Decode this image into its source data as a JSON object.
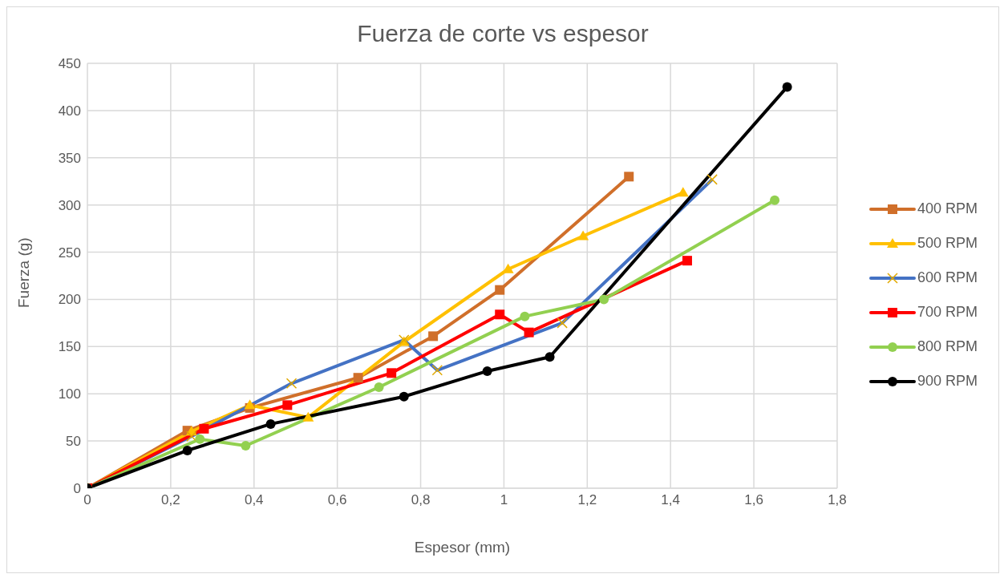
{
  "chart_data": {
    "type": "line",
    "title": "Fuerza de corte vs espesor",
    "xlabel": "Espesor (mm)",
    "ylabel": "Fuerza (g)",
    "xlim": [
      0,
      1.8
    ],
    "xticks": [
      {
        "value": 0,
        "label": "0"
      },
      {
        "value": 0.2,
        "label": "0,2"
      },
      {
        "value": 0.4,
        "label": "0,4"
      },
      {
        "value": 0.6,
        "label": "0,6"
      },
      {
        "value": 0.8,
        "label": "0,8"
      },
      {
        "value": 1,
        "label": "1"
      },
      {
        "value": 1.2,
        "label": "1,2"
      },
      {
        "value": 1.4,
        "label": "1,4"
      },
      {
        "value": 1.6,
        "label": "1,6"
      },
      {
        "value": 1.8,
        "label": "1,8"
      }
    ],
    "ylim": [
      0,
      450
    ],
    "yticks": [
      0,
      50,
      100,
      150,
      200,
      250,
      300,
      350,
      400,
      450
    ],
    "grid": true,
    "legend": "right",
    "line_style": "solid",
    "series": [
      {
        "name": "400 RPM",
        "color": "#d06f2a",
        "marker": "square",
        "x": [
          0,
          0.24,
          0.39,
          0.65,
          0.83,
          0.99,
          1.3
        ],
        "values": [
          0,
          61,
          85,
          117,
          161,
          210,
          330
        ]
      },
      {
        "name": "500 RPM",
        "color": "#ffc000",
        "marker": "triangle",
        "x": [
          0,
          0.25,
          0.39,
          0.53,
          0.76,
          1.01,
          1.19,
          1.43
        ],
        "values": [
          0,
          60,
          88,
          75,
          155,
          232,
          267,
          313
        ]
      },
      {
        "name": "600 RPM",
        "color": "#4472c4",
        "marker": "cross",
        "x": [
          0,
          0.25,
          0.49,
          0.76,
          0.84,
          1.14,
          1.5
        ],
        "values": [
          0,
          55,
          111,
          157,
          125,
          175,
          327
        ]
      },
      {
        "name": "700 RPM",
        "color": "#ff0000",
        "marker": "square",
        "x": [
          0,
          0.28,
          0.48,
          0.73,
          0.99,
          1.06,
          1.44
        ],
        "values": [
          0,
          63,
          88,
          122,
          184,
          165,
          241
        ]
      },
      {
        "name": "800 RPM",
        "color": "#92d050",
        "marker": "circle",
        "x": [
          0,
          0.27,
          0.38,
          0.7,
          1.05,
          1.24,
          1.65
        ],
        "values": [
          0,
          52,
          45,
          107,
          182,
          200,
          305
        ]
      },
      {
        "name": "900 RPM",
        "color": "#000000",
        "marker": "circle",
        "x": [
          0,
          0.24,
          0.44,
          0.76,
          0.96,
          1.11,
          1.68
        ],
        "values": [
          0,
          40,
          68,
          97,
          124,
          139,
          425
        ]
      }
    ]
  }
}
